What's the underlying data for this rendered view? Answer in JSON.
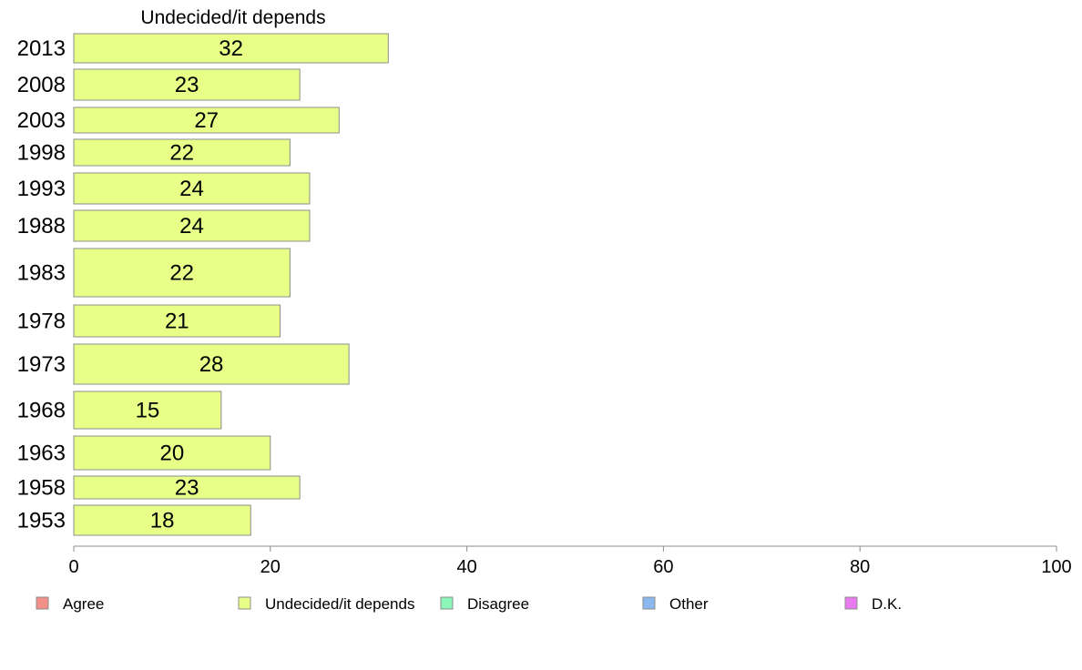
{
  "chart_data": {
    "type": "bar",
    "orientation": "horizontal",
    "title": "Undecided/it depends",
    "categories": [
      "2013",
      "2008",
      "2003",
      "1998",
      "1993",
      "1988",
      "1983",
      "1978",
      "1973",
      "1968",
      "1963",
      "1958",
      "1953"
    ],
    "values": [
      32,
      23,
      27,
      22,
      24,
      24,
      22,
      21,
      28,
      15,
      20,
      23,
      18
    ],
    "xlim": [
      0,
      100
    ],
    "xticks": [
      0,
      20,
      40,
      60,
      80,
      100
    ],
    "series_color": "#e8ff88",
    "grid": false,
    "legend_position": "bottom",
    "legend": [
      {
        "label": "Agree",
        "color": "#f4908a"
      },
      {
        "label": "Undecided/it depends",
        "color": "#e8ff88"
      },
      {
        "label": "Disagree",
        "color": "#8cf5b8"
      },
      {
        "label": "Other",
        "color": "#8cb8f0"
      },
      {
        "label": "D.K.",
        "color": "#e87af0"
      }
    ]
  }
}
